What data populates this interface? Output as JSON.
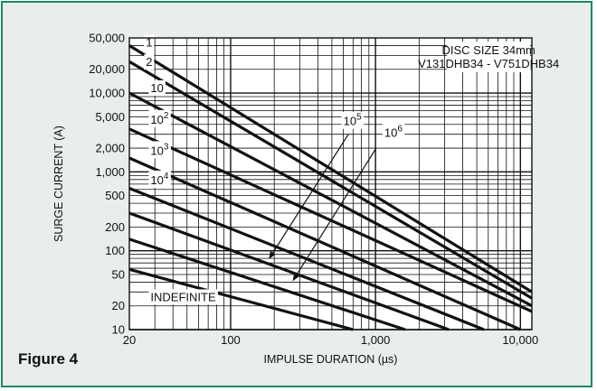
{
  "figure_label": "Figure 4",
  "chart_data": {
    "type": "line",
    "xlabel": "IMPULSE DURATION (µs)",
    "ylabel": "SURGE CURRENT (A)",
    "xscale": "log",
    "yscale": "log",
    "xlim": [
      20,
      12000
    ],
    "ylim": [
      10,
      50000
    ],
    "grid": true,
    "x_ticks": [
      "20",
      "100",
      "1,000",
      "10,000"
    ],
    "y_ticks": [
      "10",
      "20",
      "50",
      "100",
      "200",
      "500",
      "1,000",
      "2,000",
      "5,000",
      "10,000",
      "20,000",
      "50,000"
    ],
    "legend_box": [
      "DISC SIZE 34mm",
      "V131DHB34 -  V751DHB34"
    ],
    "series": [
      {
        "name": "1",
        "x": [
          20,
          12000
        ],
        "y": [
          40000,
          30
        ]
      },
      {
        "name": "2",
        "x": [
          20,
          12000
        ],
        "y": [
          25000,
          25
        ]
      },
      {
        "name": "10",
        "x": [
          20,
          12000
        ],
        "y": [
          10000,
          20
        ]
      },
      {
        "name": "10^2",
        "x": [
          20,
          12000
        ],
        "y": [
          3500,
          17
        ]
      },
      {
        "name": "10^3",
        "x": [
          20,
          10000
        ],
        "y": [
          1500,
          10
        ]
      },
      {
        "name": "10^4",
        "x": [
          20,
          5600
        ],
        "y": [
          620,
          10
        ]
      },
      {
        "name": "10^5",
        "x": [
          20,
          3200
        ],
        "y": [
          300,
          10
        ]
      },
      {
        "name": "10^6",
        "x": [
          20,
          1600
        ],
        "y": [
          140,
          10
        ]
      },
      {
        "name": "INDEFINITE",
        "x": [
          20,
          700
        ],
        "y": [
          58,
          10
        ]
      }
    ],
    "labels": [
      {
        "text": "1",
        "x": 26,
        "y": 39000
      },
      {
        "text": "2",
        "x": 26,
        "y": 22000
      },
      {
        "text": "10",
        "x": 28,
        "y": 10300
      },
      {
        "text": "10",
        "sup": "2",
        "x": 28,
        "y": 4100
      },
      {
        "text": "10",
        "sup": "3",
        "x": 28,
        "y": 1650
      },
      {
        "text": "10",
        "sup": "4",
        "x": 28,
        "y": 700
      },
      {
        "text": "10",
        "sup": "5",
        "x": 600,
        "y": 3900
      },
      {
        "text": "10",
        "sup": "6",
        "x": 1150,
        "y": 2800
      },
      {
        "text": "INDEFINITE",
        "x": 28,
        "y": 23
      }
    ],
    "arrows": [
      {
        "from": [
          650,
          3000
        ],
        "to": [
          185,
          80
        ]
      },
      {
        "from": [
          1010,
          2000
        ],
        "to": [
          270,
          42
        ]
      }
    ]
  }
}
